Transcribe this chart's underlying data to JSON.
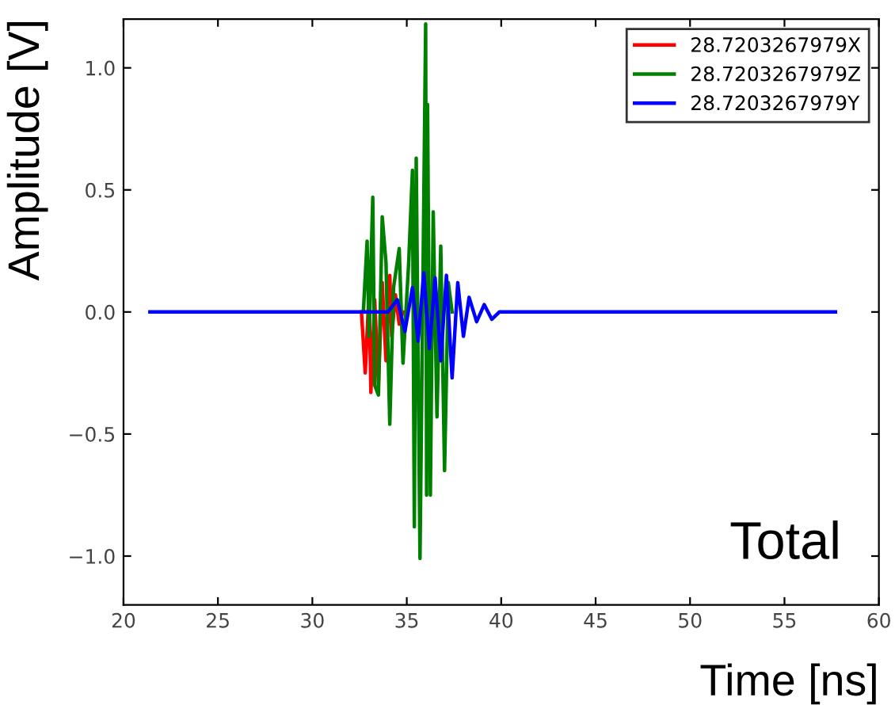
{
  "chart_data": {
    "type": "line",
    "xlabel": "Time [ns]",
    "ylabel": "Amplitude [V]",
    "annotations": [
      "Total"
    ],
    "xlim": [
      20,
      60
    ],
    "xticks": [
      20,
      25,
      30,
      35,
      40,
      45,
      50,
      55,
      60
    ],
    "ylim": [
      -1.2,
      1.2
    ],
    "yticks": [
      {
        "value": -1.0,
        "label": "−1.0"
      },
      {
        "value": -0.5,
        "label": "−0.5"
      },
      {
        "value": 0,
        "label": "0.0"
      },
      {
        "value": 0.5,
        "label": "0.5"
      },
      {
        "value": 1.0,
        "label": "1.0"
      }
    ],
    "grid": false,
    "legend": "top right",
    "marker": "none",
    "line_style": "solid",
    "series": [
      {
        "name": "28.7203267979X",
        "color": "#ff0000",
        "x": [
          32.6,
          32.8,
          33.0,
          33.1,
          33.3,
          33.5,
          33.7,
          33.9,
          34.1,
          34.2,
          34.4,
          34.6,
          34.8
        ],
        "values": [
          0.0,
          -0.25,
          0.08,
          -0.33,
          0.05,
          -0.3,
          0.12,
          -0.2,
          0.15,
          -0.1,
          0.07,
          -0.05,
          0.0
        ]
      },
      {
        "name": "28.7203267979Z",
        "color": "#008000",
        "x": [
          32.7,
          32.9,
          33.0,
          33.2,
          33.3,
          33.5,
          33.7,
          33.9,
          34.1,
          34.3,
          34.6,
          34.8,
          35.1,
          35.3,
          35.4,
          35.5,
          35.7,
          36.0,
          36.05,
          36.1,
          36.25,
          36.4,
          36.6,
          36.8,
          37.0,
          37.2,
          37.4
        ],
        "values": [
          0.0,
          0.29,
          -0.1,
          0.47,
          -0.3,
          -0.34,
          0.39,
          0.2,
          -0.46,
          0.1,
          0.26,
          -0.21,
          0.2,
          0.58,
          -0.88,
          0.63,
          -1.01,
          1.18,
          -0.75,
          0.85,
          -0.75,
          0.41,
          -0.43,
          0.27,
          -0.65,
          0.12,
          0.0
        ]
      },
      {
        "name": "28.7203267979Y",
        "color": "#0000ff",
        "x": [
          21.4,
          34.0,
          34.5,
          34.9,
          35.3,
          35.6,
          35.9,
          36.2,
          36.5,
          36.8,
          37.1,
          37.4,
          37.7,
          38.0,
          38.3,
          38.7,
          39.1,
          39.5,
          39.9,
          40.2,
          57.7
        ],
        "values": [
          0.0,
          0.0,
          0.05,
          -0.08,
          0.1,
          -0.12,
          0.16,
          -0.15,
          0.14,
          -0.2,
          0.15,
          -0.27,
          0.12,
          -0.1,
          0.06,
          -0.04,
          0.03,
          -0.03,
          0.0,
          0.0,
          0.0
        ]
      }
    ]
  }
}
